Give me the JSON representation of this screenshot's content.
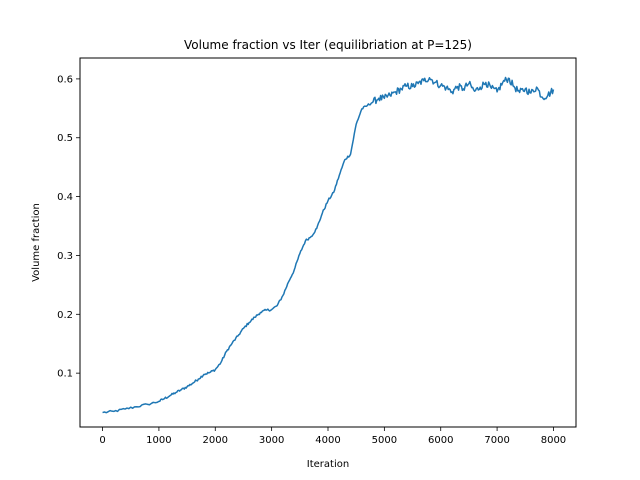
{
  "chart_data": {
    "type": "line",
    "title": "Volume fraction vs Iter (equilibriation at P=125)",
    "xlabel": "Iteration",
    "ylabel": "Volume fraction",
    "xlim": [
      -400,
      8400
    ],
    "ylim": [
      0.0085,
      0.6355
    ],
    "xticks": [
      0,
      1000,
      2000,
      3000,
      4000,
      5000,
      6000,
      7000,
      8000
    ],
    "xtick_labels": [
      "0",
      "1000",
      "2000",
      "3000",
      "4000",
      "5000",
      "6000",
      "7000",
      "8000"
    ],
    "yticks": [
      0.1,
      0.2,
      0.3,
      0.4,
      0.5,
      0.6
    ],
    "ytick_labels": [
      "0.1",
      "0.2",
      "0.3",
      "0.4",
      "0.5",
      "0.6"
    ],
    "grid": false,
    "line_color": "#1f77b4",
    "series": [
      {
        "x": [
          0,
          200,
          400,
          600,
          800,
          1000,
          1100,
          1200,
          1300,
          1400,
          1500,
          1600,
          1700,
          1800,
          1900,
          2000,
          2100,
          2200,
          2300,
          2400,
          2500,
          2600,
          2700,
          2800,
          2900,
          3000,
          3100,
          3200,
          3300,
          3400,
          3500,
          3600,
          3700,
          3800,
          3900,
          4000,
          4100,
          4200,
          4300,
          4400,
          4500,
          4600,
          4700,
          4800,
          4900,
          5000,
          5100,
          5200,
          5300,
          5400,
          5500,
          5600,
          5700,
          5800,
          5900,
          6000,
          6100,
          6200,
          6300,
          6400,
          6500,
          6600,
          6700,
          6800,
          6900,
          7000,
          7100,
          7200,
          7300,
          7400,
          7500,
          7600,
          7700,
          7800,
          7900,
          8000
        ],
        "y": [
          0.033,
          0.035,
          0.039,
          0.043,
          0.047,
          0.052,
          0.057,
          0.062,
          0.067,
          0.072,
          0.077,
          0.083,
          0.09,
          0.098,
          0.101,
          0.106,
          0.118,
          0.137,
          0.151,
          0.163,
          0.176,
          0.186,
          0.195,
          0.203,
          0.207,
          0.208,
          0.215,
          0.232,
          0.255,
          0.275,
          0.303,
          0.325,
          0.332,
          0.346,
          0.372,
          0.393,
          0.407,
          0.436,
          0.463,
          0.472,
          0.523,
          0.549,
          0.555,
          0.561,
          0.567,
          0.567,
          0.572,
          0.578,
          0.583,
          0.588,
          0.587,
          0.592,
          0.597,
          0.602,
          0.594,
          0.589,
          0.585,
          0.578,
          0.587,
          0.583,
          0.592,
          0.579,
          0.586,
          0.594,
          0.584,
          0.578,
          0.594,
          0.601,
          0.587,
          0.577,
          0.583,
          0.576,
          0.586,
          0.569,
          0.572,
          0.582
        ]
      }
    ]
  }
}
